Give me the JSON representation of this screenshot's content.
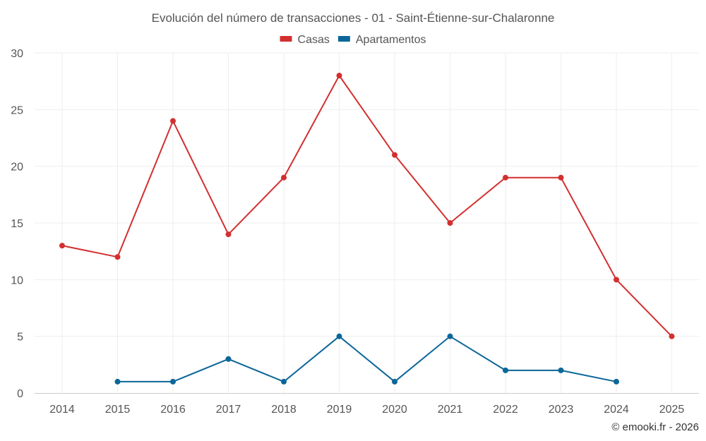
{
  "chart_data": {
    "type": "line",
    "title": "Evolución del número de transacciones - 01 - Saint-Étienne-sur-Chalaronne",
    "x": [
      "2014",
      "2015",
      "2016",
      "2017",
      "2018",
      "2019",
      "2020",
      "2021",
      "2022",
      "2023",
      "2024",
      "2025"
    ],
    "series": [
      {
        "name": "Casas",
        "color": "#d32f2f",
        "values": [
          13,
          12,
          24,
          14,
          19,
          28,
          21,
          15,
          19,
          19,
          10,
          5
        ]
      },
      {
        "name": "Apartamentos",
        "color": "#0b6699",
        "values": [
          null,
          1,
          1,
          3,
          1,
          5,
          1,
          5,
          2,
          2,
          1,
          null
        ]
      }
    ],
    "yticks": [
      "0",
      "5",
      "10",
      "15",
      "20",
      "25",
      "30"
    ],
    "ylim": [
      0,
      30
    ],
    "grid": true,
    "legend_position": "top-center",
    "credit": "© emooki.fr - 2026"
  }
}
